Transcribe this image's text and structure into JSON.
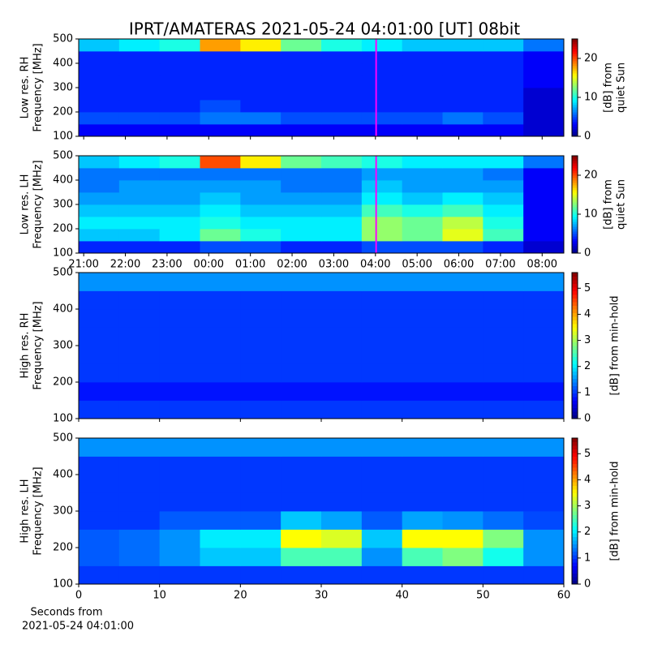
{
  "chart_data": [
    {
      "type": "heatmap",
      "title": "IPRT/AMATERAS 2021-05-24 04:01:00 [UT]   08bit",
      "ylabel": [
        "Low res. RH",
        "Frequency [MHz]"
      ],
      "cbar_label": [
        "[dB] from",
        "quiet Sun"
      ],
      "xlim": [
        -0.12,
        11.52
      ],
      "xticks": [
        0,
        1,
        2,
        3,
        4,
        5,
        6,
        7,
        8,
        9,
        10,
        11
      ],
      "xtick_labels": false,
      "ylim": [
        100,
        500
      ],
      "yticks": [
        100,
        200,
        300,
        400,
        500
      ],
      "clim": [
        0,
        25
      ],
      "cticks": [
        0,
        10,
        20
      ],
      "colormap": "jet",
      "vline": 7.0167,
      "vline_color": "#ff00ff",
      "xbins": [
        -0.12,
        0.85,
        1.82,
        2.79,
        3.76,
        4.73,
        5.7,
        6.67,
        7.64,
        8.61,
        9.58,
        10.55,
        11.52
      ],
      "ybins": [
        100,
        150,
        200,
        250,
        300,
        350,
        400,
        450,
        500
      ],
      "z": [
        [
          3,
          3,
          3,
          3,
          3,
          3,
          3,
          3,
          3,
          3,
          3,
          2
        ],
        [
          5,
          5,
          5,
          6,
          6,
          5,
          5,
          5,
          5,
          6,
          5,
          2
        ],
        [
          4,
          4,
          4,
          5,
          4,
          4,
          4,
          4,
          4,
          4,
          4,
          2
        ],
        [
          4,
          4,
          4,
          4,
          4,
          4,
          4,
          4,
          4,
          4,
          4,
          2
        ],
        [
          4,
          4,
          4,
          4,
          4,
          4,
          4,
          4,
          4,
          4,
          4,
          3
        ],
        [
          4,
          4,
          4,
          4,
          4,
          4,
          4,
          4,
          4,
          4,
          4,
          3
        ],
        [
          4,
          4,
          4,
          4,
          4,
          4,
          4,
          4,
          4,
          4,
          4,
          3
        ],
        [
          8,
          9,
          10,
          18,
          16,
          12,
          10,
          9,
          8,
          8,
          8,
          6
        ]
      ]
    },
    {
      "type": "heatmap",
      "ylabel": [
        "Low res. LH",
        "Frequency [MHz]"
      ],
      "cbar_label": [
        "[dB] from",
        "quiet Sun"
      ],
      "xlim": [
        -0.12,
        11.52
      ],
      "xticks": [
        {
          "value": 0,
          "label": "21:00"
        },
        {
          "value": 1,
          "label": "22:00"
        },
        {
          "value": 2,
          "label": "23:00"
        },
        {
          "value": 3,
          "label": "00:00"
        },
        {
          "value": 4,
          "label": "01:00"
        },
        {
          "value": 5,
          "label": "02:00"
        },
        {
          "value": 6,
          "label": "03:00"
        },
        {
          "value": 7,
          "label": "04:00"
        },
        {
          "value": 8,
          "label": "05:00"
        },
        {
          "value": 9,
          "label": "06:00"
        },
        {
          "value": 10,
          "label": "07:00"
        },
        {
          "value": 11,
          "label": "08:00"
        }
      ],
      "xtick_labels": true,
      "ylim": [
        100,
        500
      ],
      "yticks": [
        100,
        200,
        300,
        400,
        500
      ],
      "clim": [
        0,
        25
      ],
      "cticks": [
        0,
        10,
        20
      ],
      "colormap": "jet",
      "vline": 7.0167,
      "vline_color": "#ff00ff",
      "xbins": [
        -0.12,
        0.85,
        1.82,
        2.79,
        3.76,
        4.73,
        5.7,
        6.67,
        7.64,
        8.61,
        9.58,
        10.55,
        11.52
      ],
      "ybins": [
        100,
        150,
        200,
        250,
        300,
        350,
        400,
        450,
        500
      ],
      "z": [
        [
          4,
          4,
          4,
          5,
          5,
          4,
          4,
          5,
          5,
          5,
          4,
          2
        ],
        [
          8,
          8,
          9,
          12,
          10,
          9,
          9,
          13,
          12,
          15,
          11,
          3
        ],
        [
          9,
          9,
          9,
          10,
          9,
          9,
          9,
          13,
          12,
          14,
          10,
          3
        ],
        [
          8,
          8,
          8,
          9,
          8,
          8,
          8,
          11,
          10,
          11,
          9,
          3
        ],
        [
          7,
          7,
          7,
          8,
          7,
          7,
          7,
          9,
          8,
          9,
          8,
          3
        ],
        [
          6,
          7,
          7,
          7,
          7,
          6,
          6,
          8,
          7,
          7,
          7,
          3
        ],
        [
          6,
          6,
          6,
          6,
          6,
          6,
          6,
          7,
          7,
          7,
          6,
          3
        ],
        [
          8,
          9,
          10,
          20,
          16,
          12,
          11,
          10,
          9,
          9,
          9,
          6
        ]
      ]
    },
    {
      "type": "heatmap",
      "ylabel": [
        "High res. RH",
        "Frequency [MHz]"
      ],
      "cbar_label": [
        "[dB] from min-hold"
      ],
      "xlim": [
        0,
        60
      ],
      "xticks": [
        0,
        10,
        20,
        30,
        40,
        50,
        60
      ],
      "xtick_labels": false,
      "ylim": [
        100,
        500
      ],
      "yticks": [
        100,
        200,
        300,
        400,
        500
      ],
      "clim": [
        0,
        5.6
      ],
      "cticks": [
        0,
        1,
        2,
        3,
        4,
        5
      ],
      "colormap": "jet",
      "xbins": [
        0,
        5,
        10,
        15,
        20,
        25,
        30,
        35,
        40,
        45,
        50,
        55,
        60
      ],
      "ybins": [
        100,
        150,
        200,
        250,
        300,
        350,
        400,
        450,
        500
      ],
      "z": [
        [
          1,
          1,
          1,
          1,
          1,
          1,
          1,
          1,
          1,
          1,
          1,
          1
        ],
        [
          0.8,
          0.8,
          0.8,
          0.8,
          0.8,
          0.8,
          0.8,
          0.8,
          0.8,
          0.8,
          0.8,
          0.8
        ],
        [
          1,
          1,
          1,
          1,
          1,
          1,
          1,
          1,
          1,
          1,
          1,
          1
        ],
        [
          1,
          1,
          1,
          1,
          1,
          1,
          1,
          1,
          1,
          1,
          1,
          1
        ],
        [
          1,
          1,
          1,
          1,
          1,
          1,
          1,
          1,
          1,
          1,
          1,
          1
        ],
        [
          1,
          1,
          1,
          1,
          1,
          1,
          1,
          1,
          1,
          1,
          1,
          1
        ],
        [
          1,
          1,
          1,
          1,
          1,
          1,
          1,
          1,
          1,
          1,
          1,
          1
        ],
        [
          1.5,
          1.5,
          1.5,
          1.5,
          1.5,
          1.5,
          1.5,
          1.5,
          1.5,
          1.5,
          1.5,
          1.5
        ]
      ]
    },
    {
      "type": "heatmap",
      "ylabel": [
        "High res. LH",
        "Frequency [MHz]"
      ],
      "cbar_label": [
        "[dB] from min-hold"
      ],
      "xlabel": [
        "Seconds from",
        "2021-05-24 04:01:00"
      ],
      "xlim": [
        0,
        60
      ],
      "xticks": [
        0,
        10,
        20,
        30,
        40,
        50,
        60
      ],
      "xtick_labels": true,
      "ylim": [
        100,
        500
      ],
      "yticks": [
        100,
        200,
        300,
        400,
        500
      ],
      "clim": [
        0,
        5.6
      ],
      "cticks": [
        0,
        1,
        2,
        3,
        4,
        5
      ],
      "colormap": "jet",
      "xbins": [
        0,
        5,
        10,
        15,
        20,
        25,
        30,
        35,
        40,
        45,
        50,
        55,
        60
      ],
      "ybins": [
        100,
        150,
        200,
        250,
        300,
        350,
        400,
        450,
        500
      ],
      "z": [
        [
          1,
          1,
          1,
          1,
          1,
          1,
          1,
          1,
          1,
          1,
          1,
          1
        ],
        [
          1.2,
          1.3,
          1.5,
          1.8,
          1.8,
          2.5,
          2.5,
          1.5,
          2.5,
          2.8,
          2.2,
          1.5
        ],
        [
          1.2,
          1.3,
          1.5,
          2,
          2,
          3.5,
          3.3,
          1.8,
          3.5,
          3.5,
          2.8,
          1.5
        ],
        [
          1,
          1,
          1.2,
          1.2,
          1.2,
          1.8,
          1.6,
          1.2,
          1.6,
          1.5,
          1.3,
          1.1
        ],
        [
          1,
          1,
          1,
          1,
          1,
          1,
          1,
          1,
          1,
          1,
          1,
          1
        ],
        [
          1,
          1,
          1,
          1,
          1,
          1,
          1,
          1,
          1,
          1,
          1,
          1
        ],
        [
          1,
          1,
          1,
          1,
          1,
          1,
          1,
          1,
          1,
          1,
          1,
          1
        ],
        [
          1.5,
          1.5,
          1.5,
          1.5,
          1.5,
          1.5,
          1.5,
          1.5,
          1.5,
          1.5,
          1.5,
          1.5
        ]
      ]
    }
  ]
}
